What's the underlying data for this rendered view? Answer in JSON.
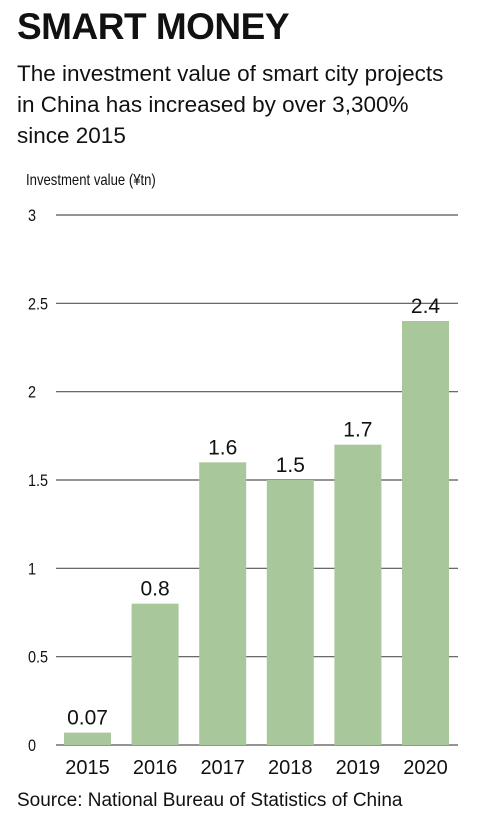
{
  "header": {
    "title": "SMART MONEY",
    "subtitle": "The investment value of smart city projects in China has increased by over 3,300% since 2015"
  },
  "footer": {
    "source": "Source: National Bureau of Statistics of China"
  },
  "chart_data": {
    "type": "bar",
    "categories": [
      "2015",
      "2016",
      "2017",
      "2018",
      "2019",
      "2020"
    ],
    "values": [
      0.07,
      0.8,
      1.6,
      1.5,
      1.7,
      2.4
    ],
    "data_labels": [
      "0.07",
      "0.8",
      "1.6",
      "1.5",
      "1.7",
      "2.4"
    ],
    "ylabel": "Investment value (¥tn)",
    "xlabel": "",
    "ylim": [
      0,
      3
    ],
    "yticks": [
      0,
      0.5,
      1,
      1.5,
      2,
      2.5,
      3
    ],
    "ytick_labels": [
      "0",
      "0.5",
      "1",
      "1.5",
      "2",
      "2.5",
      "3"
    ],
    "grid": true,
    "bar_color": "#a8c89c",
    "grid_color": "#555555"
  }
}
